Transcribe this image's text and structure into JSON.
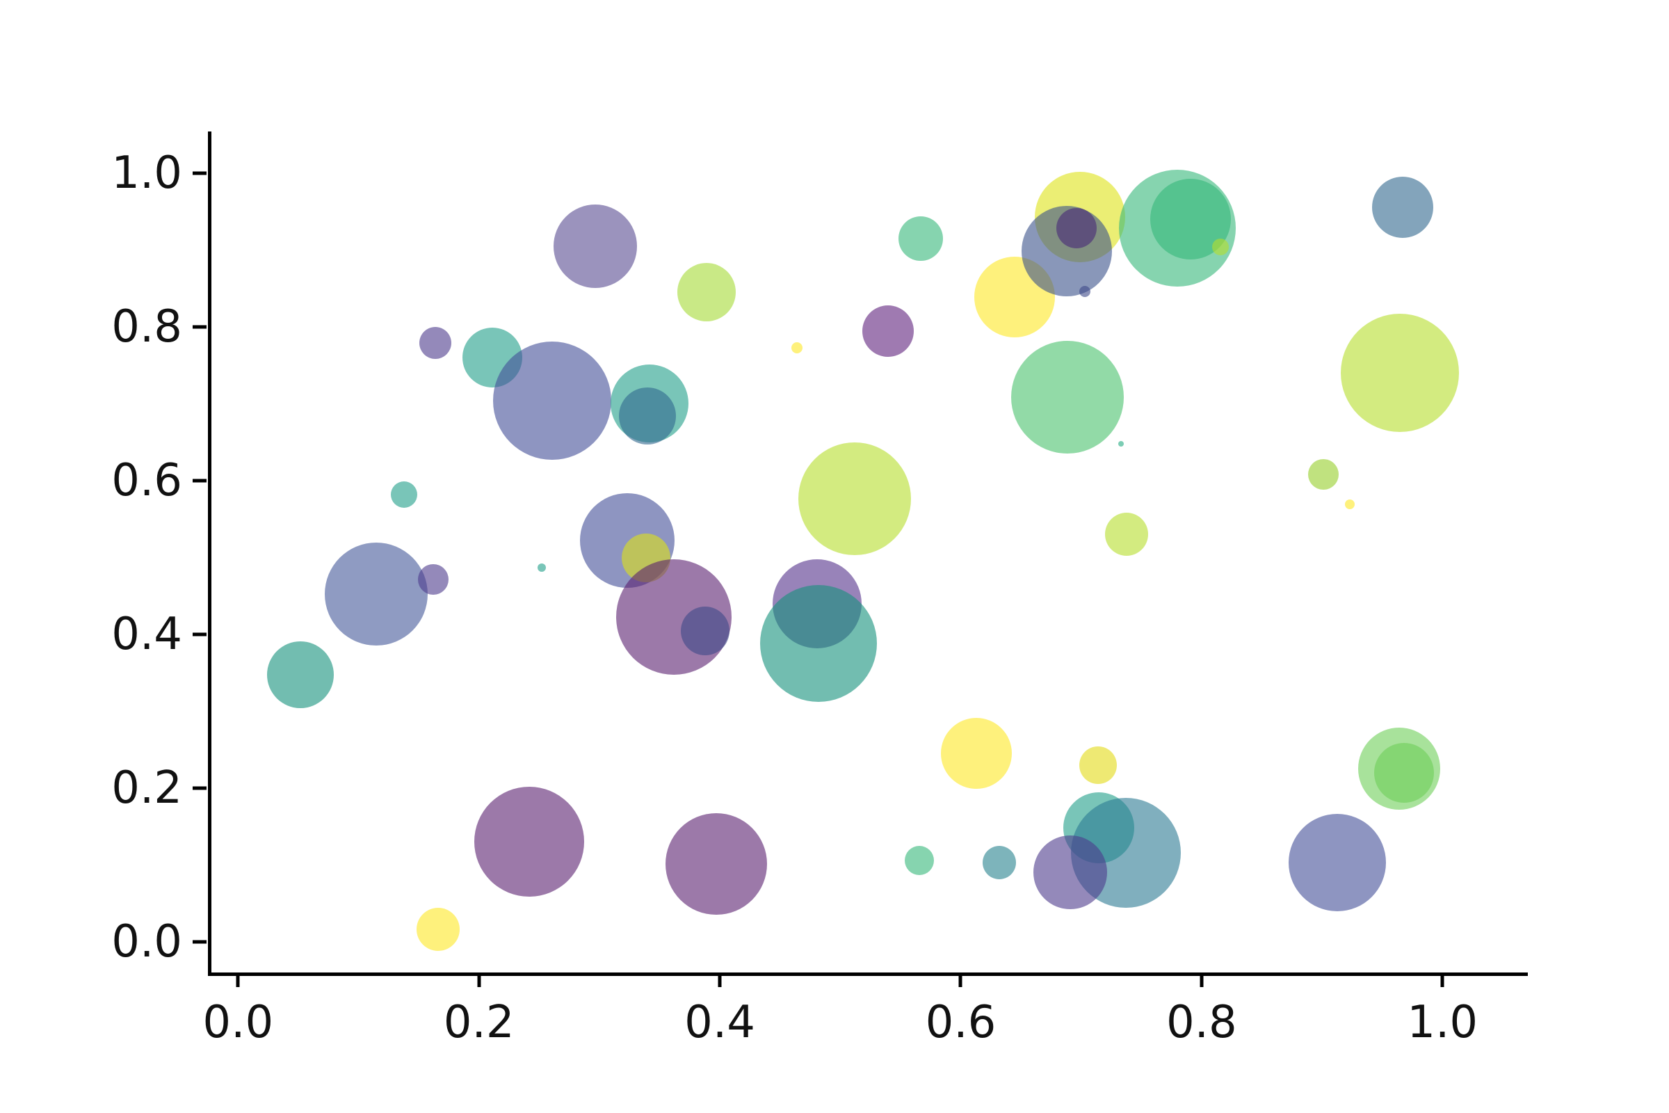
{
  "figure": {
    "background": "#ffffff",
    "spine_color": "#000000",
    "tick_label_color": "#111111"
  },
  "chart_data": {
    "type": "scatter",
    "title": "",
    "xlabel": "",
    "ylabel": "",
    "grid": false,
    "legend": false,
    "colormap": "viridis",
    "marker_alpha": 0.6,
    "xlim": [
      -0.025,
      1.068
    ],
    "ylim": [
      -0.04,
      1.054
    ],
    "x_ticks": {
      "values": [
        0.0,
        0.2,
        0.4,
        0.6,
        0.8,
        1.0
      ],
      "labels": [
        "0.0",
        "0.2",
        "0.4",
        "0.6",
        "0.8",
        "1.0"
      ]
    },
    "y_ticks": {
      "values": [
        0.0,
        0.2,
        0.4,
        0.6,
        0.8,
        1.0
      ],
      "labels": [
        "0.0",
        "0.2",
        "0.4",
        "0.6",
        "0.8",
        "1.0"
      ]
    },
    "points": [
      {
        "x": 0.294,
        "y": 0.905,
        "r": 60,
        "color": "#584b91"
      },
      {
        "x": 0.161,
        "y": 0.779,
        "r": 23,
        "color": "#4d3a8c"
      },
      {
        "x": 0.208,
        "y": 0.76,
        "r": 43,
        "color": "#1f9e89"
      },
      {
        "x": 0.258,
        "y": 0.704,
        "r": 85,
        "color": "#424e97"
      },
      {
        "x": 0.339,
        "y": 0.7,
        "r": 56,
        "color": "#1f9e89"
      },
      {
        "x": 0.337,
        "y": 0.684,
        "r": 41,
        "color": "#31688e"
      },
      {
        "x": 0.135,
        "y": 0.582,
        "r": 19,
        "color": "#1f9e89"
      },
      {
        "x": 0.386,
        "y": 0.845,
        "r": 42,
        "color": "#a5db36"
      },
      {
        "x": 0.564,
        "y": 0.915,
        "r": 32,
        "color": "#35b779"
      },
      {
        "x": 0.537,
        "y": 0.794,
        "r": 37,
        "color": "#5f227d"
      },
      {
        "x": 0.461,
        "y": 0.773,
        "r": 8,
        "color": "#fde725"
      },
      {
        "x": 0.642,
        "y": 0.839,
        "r": 58,
        "color": "#fde725"
      },
      {
        "x": 0.696,
        "y": 0.943,
        "r": 65,
        "color": "#dde318"
      },
      {
        "x": 0.685,
        "y": 0.898,
        "r": 65,
        "color": "#3b528b"
      },
      {
        "x": 0.693,
        "y": 0.928,
        "r": 29,
        "color": "#482878"
      },
      {
        "x": 0.7,
        "y": 0.846,
        "r": 8,
        "color": "#3e4989"
      },
      {
        "x": 0.777,
        "y": 0.928,
        "r": 84,
        "color": "#35b779"
      },
      {
        "x": 0.788,
        "y": 0.94,
        "r": 58,
        "color": "#35b779"
      },
      {
        "x": 0.813,
        "y": 0.904,
        "r": 12,
        "color": "#b5de2b"
      },
      {
        "x": 0.964,
        "y": 0.955,
        "r": 44,
        "color": "#31688e"
      },
      {
        "x": 0.962,
        "y": 0.74,
        "r": 85,
        "color": "#b5de2b"
      },
      {
        "x": 0.686,
        "y": 0.708,
        "r": 81,
        "color": "#4ac16d"
      },
      {
        "x": 0.73,
        "y": 0.648,
        "r": 4,
        "color": "#25ab82"
      },
      {
        "x": 0.898,
        "y": 0.608,
        "r": 22,
        "color": "#96ce2a"
      },
      {
        "x": 0.92,
        "y": 0.569,
        "r": 7,
        "color": "#fde725"
      },
      {
        "x": 0.735,
        "y": 0.53,
        "r": 31,
        "color": "#b5de2b"
      },
      {
        "x": 0.112,
        "y": 0.452,
        "r": 74,
        "color": "#455899"
      },
      {
        "x": 0.159,
        "y": 0.471,
        "r": 22,
        "color": "#4d3a8c"
      },
      {
        "x": 0.249,
        "y": 0.487,
        "r": 6,
        "color": "#1f9e89"
      },
      {
        "x": 0.049,
        "y": 0.347,
        "r": 48,
        "color": "#14917c"
      },
      {
        "x": 0.32,
        "y": 0.522,
        "r": 68,
        "color": "#424e97"
      },
      {
        "x": 0.336,
        "y": 0.499,
        "r": 35,
        "color": "#dde318"
      },
      {
        "x": 0.359,
        "y": 0.422,
        "r": 83,
        "color": "#5a1f70"
      },
      {
        "x": 0.385,
        "y": 0.404,
        "r": 35,
        "color": "#3e4989"
      },
      {
        "x": 0.478,
        "y": 0.44,
        "r": 64,
        "color": "#54308a"
      },
      {
        "x": 0.479,
        "y": 0.388,
        "r": 84,
        "color": "#14917c"
      },
      {
        "x": 0.509,
        "y": 0.576,
        "r": 81,
        "color": "#b5de2b"
      },
      {
        "x": 0.61,
        "y": 0.245,
        "r": 51,
        "color": "#fde725"
      },
      {
        "x": 0.711,
        "y": 0.23,
        "r": 27,
        "color": "#e3da16"
      },
      {
        "x": 0.239,
        "y": 0.13,
        "r": 79,
        "color": "#5a1f70"
      },
      {
        "x": 0.394,
        "y": 0.101,
        "r": 73,
        "color": "#5a1f70"
      },
      {
        "x": 0.163,
        "y": 0.016,
        "r": 31,
        "color": "#fde725"
      },
      {
        "x": 0.563,
        "y": 0.106,
        "r": 21,
        "color": "#35b779"
      },
      {
        "x": 0.629,
        "y": 0.103,
        "r": 24,
        "color": "#26828e"
      },
      {
        "x": 0.712,
        "y": 0.148,
        "r": 51,
        "color": "#1f9e89"
      },
      {
        "x": 0.734,
        "y": 0.116,
        "r": 79,
        "color": "#2b7a92"
      },
      {
        "x": 0.688,
        "y": 0.09,
        "r": 53,
        "color": "#4d3a8c"
      },
      {
        "x": 0.961,
        "y": 0.225,
        "r": 59,
        "color": "#6ece58"
      },
      {
        "x": 0.965,
        "y": 0.22,
        "r": 43,
        "color": "#6ece58"
      },
      {
        "x": 0.91,
        "y": 0.103,
        "r": 70,
        "color": "#424e97"
      }
    ]
  }
}
